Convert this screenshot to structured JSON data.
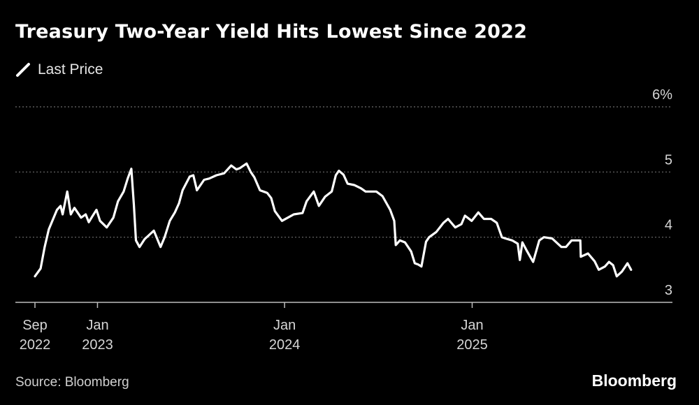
{
  "chart_data": {
    "type": "line",
    "title": "Treasury Two-Year Yield Hits Lowest Since 2022",
    "legend": [
      {
        "name": "Last Price",
        "color": "#ffffff"
      }
    ],
    "ylim": [
      3,
      6
    ],
    "yticks": [
      {
        "value": 6,
        "label": "6%"
      },
      {
        "value": 5,
        "label": "5"
      },
      {
        "value": 4,
        "label": "4"
      },
      {
        "value": 3,
        "label": "3"
      }
    ],
    "xlim": [
      "2022-09-01",
      "2025-11-10"
    ],
    "xticks": [
      {
        "date": "2022-09-01",
        "label1": "Sep",
        "label2": "2022"
      },
      {
        "date": "2023-01-01",
        "label1": "Jan",
        "label2": "2023"
      },
      {
        "date": "2024-01-01",
        "label1": "Jan",
        "label2": "2024"
      },
      {
        "date": "2025-01-01",
        "label1": "Jan",
        "label2": "2025"
      }
    ],
    "series": [
      {
        "name": "Last Price",
        "x": [
          "2022-09-01",
          "2022-09-12",
          "2022-09-20",
          "2022-09-28",
          "2022-10-05",
          "2022-10-14",
          "2022-10-21",
          "2022-10-25",
          "2022-11-03",
          "2022-11-10",
          "2022-11-17",
          "2022-11-30",
          "2022-12-09",
          "2022-12-15",
          "2022-12-22",
          "2022-12-30",
          "2023-01-06",
          "2023-01-19",
          "2023-02-01",
          "2023-02-10",
          "2023-02-21",
          "2023-03-01",
          "2023-03-08",
          "2023-03-13",
          "2023-03-17",
          "2023-03-24",
          "2023-04-03",
          "2023-04-14",
          "2023-04-21",
          "2023-05-04",
          "2023-05-12",
          "2023-05-22",
          "2023-06-01",
          "2023-06-09",
          "2023-06-16",
          "2023-06-30",
          "2023-07-07",
          "2023-07-14",
          "2023-07-28",
          "2023-08-07",
          "2023-08-21",
          "2023-09-05",
          "2023-09-19",
          "2023-09-29",
          "2023-10-06",
          "2023-10-19",
          "2023-10-27",
          "2023-11-03",
          "2023-11-14",
          "2023-11-28",
          "2023-12-06",
          "2023-12-13",
          "2023-12-27",
          "2024-01-12",
          "2024-01-19",
          "2024-02-05",
          "2024-02-13",
          "2024-02-27",
          "2024-03-08",
          "2024-03-20",
          "2024-04-02",
          "2024-04-10",
          "2024-04-16",
          "2024-04-25",
          "2024-05-03",
          "2024-05-16",
          "2024-05-29",
          "2024-06-07",
          "2024-06-14",
          "2024-06-28",
          "2024-07-10",
          "2024-07-25",
          "2024-08-02",
          "2024-08-05",
          "2024-08-13",
          "2024-08-23",
          "2024-09-04",
          "2024-09-11",
          "2024-09-18",
          "2024-09-24",
          "2024-10-03",
          "2024-10-09",
          "2024-10-23",
          "2024-11-06",
          "2024-11-15",
          "2024-11-29",
          "2024-12-11",
          "2024-12-18",
          "2024-12-31",
          "2025-01-13",
          "2025-01-24",
          "2025-02-07",
          "2025-02-18",
          "2025-02-28",
          "2025-03-07",
          "2025-03-20",
          "2025-03-31",
          "2025-04-04",
          "2025-04-09",
          "2025-04-17",
          "2025-04-30",
          "2025-05-12",
          "2025-05-21",
          "2025-06-06",
          "2025-06-24",
          "2025-07-03",
          "2025-07-14",
          "2025-07-31",
          "2025-08-01",
          "2025-08-15",
          "2025-08-28",
          "2025-09-05",
          "2025-09-17",
          "2025-09-25",
          "2025-10-03",
          "2025-10-10",
          "2025-10-20",
          "2025-10-31",
          "2025-11-07"
        ],
        "values": [
          3.4,
          3.52,
          3.85,
          4.12,
          4.25,
          4.42,
          4.48,
          4.35,
          4.7,
          4.35,
          4.45,
          4.3,
          4.35,
          4.23,
          4.32,
          4.42,
          4.25,
          4.15,
          4.3,
          4.55,
          4.7,
          4.9,
          5.05,
          4.5,
          3.95,
          3.85,
          3.97,
          4.05,
          4.1,
          3.85,
          4.0,
          4.25,
          4.38,
          4.52,
          4.72,
          4.93,
          4.95,
          4.72,
          4.88,
          4.9,
          4.95,
          4.98,
          5.1,
          5.04,
          5.06,
          5.13,
          5.0,
          4.92,
          4.72,
          4.68,
          4.6,
          4.4,
          4.25,
          4.32,
          4.35,
          4.37,
          4.55,
          4.7,
          4.48,
          4.62,
          4.7,
          4.95,
          5.02,
          4.96,
          4.82,
          4.8,
          4.75,
          4.7,
          4.7,
          4.7,
          4.63,
          4.42,
          4.25,
          3.88,
          3.95,
          3.92,
          3.78,
          3.6,
          3.58,
          3.55,
          3.93,
          4.0,
          4.08,
          4.22,
          4.28,
          4.15,
          4.2,
          4.33,
          4.25,
          4.38,
          4.28,
          4.28,
          4.22,
          4.0,
          3.98,
          3.95,
          3.9,
          3.65,
          3.92,
          3.8,
          3.62,
          3.95,
          4.0,
          3.98,
          3.85,
          3.85,
          3.95,
          3.95,
          3.7,
          3.75,
          3.63,
          3.5,
          3.55,
          3.62,
          3.57,
          3.4,
          3.47,
          3.6,
          3.5
        ]
      }
    ],
    "source": "Source: Bloomberg",
    "brand": "Bloomberg"
  }
}
